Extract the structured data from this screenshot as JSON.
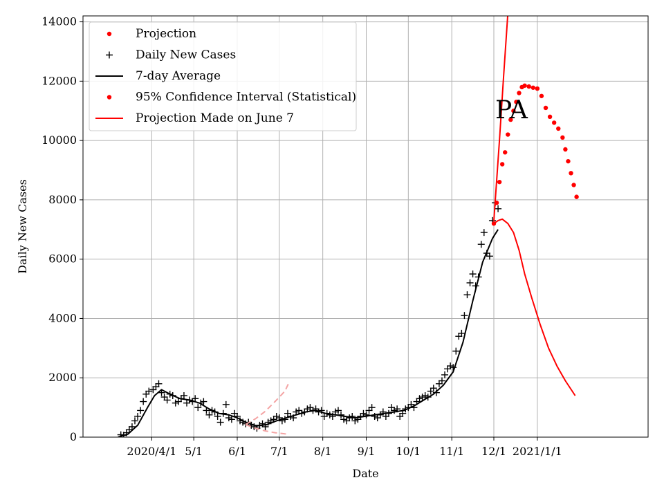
{
  "chart_data": {
    "type": "line",
    "title": "",
    "annotation": "PA",
    "xlabel": "Date",
    "ylabel": "Daily New Cases",
    "xaxis": {
      "type": "date",
      "range": [
        "2020-02-12",
        "2021-03-21"
      ],
      "ticks": [
        {
          "date": "2020-04-01",
          "label": "2020/4/1"
        },
        {
          "date": "2020-05-01",
          "label": "5/1"
        },
        {
          "date": "2020-06-01",
          "label": "6/1"
        },
        {
          "date": "2020-07-01",
          "label": "7/1"
        },
        {
          "date": "2020-08-01",
          "label": "8/1"
        },
        {
          "date": "2020-09-01",
          "label": "9/1"
        },
        {
          "date": "2020-10-01",
          "label": "10/1"
        },
        {
          "date": "2020-11-01",
          "label": "11/1"
        },
        {
          "date": "2020-12-01",
          "label": "12/1"
        },
        {
          "date": "2021-01-01",
          "label": "2021/1/1"
        }
      ]
    },
    "ylim": [
      0,
      14200
    ],
    "yticks": [
      0,
      2000,
      4000,
      6000,
      8000,
      10000,
      12000,
      14000
    ],
    "grid": true,
    "legend_position": "top-left",
    "legend": [
      {
        "label": "Projection",
        "marker": "dot",
        "color": "#ff0000"
      },
      {
        "label": "Daily New Cases",
        "marker": "plus",
        "color": "#000000"
      },
      {
        "label": "7-day Average",
        "marker": "line",
        "color": "#000000"
      },
      {
        "label": "95% Confidence Interval (Statistical)",
        "marker": "dot",
        "color": "#ff0000"
      },
      {
        "label": "Projection Made on June 7",
        "marker": "line",
        "color": "#ff0000"
      }
    ],
    "series": [
      {
        "name": "Daily New Cases",
        "style": "plus",
        "color": "#000000",
        "points": [
          [
            "2020-03-10",
            80
          ],
          [
            "2020-03-12",
            60
          ],
          [
            "2020-03-14",
            150
          ],
          [
            "2020-03-16",
            250
          ],
          [
            "2020-03-18",
            350
          ],
          [
            "2020-03-20",
            550
          ],
          [
            "2020-03-22",
            700
          ],
          [
            "2020-03-24",
            900
          ],
          [
            "2020-03-26",
            1200
          ],
          [
            "2020-03-28",
            1450
          ],
          [
            "2020-03-30",
            1550
          ],
          [
            "2020-04-02",
            1600
          ],
          [
            "2020-04-04",
            1700
          ],
          [
            "2020-04-06",
            1800
          ],
          [
            "2020-04-08",
            1500
          ],
          [
            "2020-04-10",
            1350
          ],
          [
            "2020-04-12",
            1250
          ],
          [
            "2020-04-14",
            1450
          ],
          [
            "2020-04-16",
            1400
          ],
          [
            "2020-04-18",
            1150
          ],
          [
            "2020-04-20",
            1200
          ],
          [
            "2020-04-22",
            1300
          ],
          [
            "2020-04-24",
            1400
          ],
          [
            "2020-04-26",
            1150
          ],
          [
            "2020-04-28",
            1250
          ],
          [
            "2020-04-30",
            1200
          ],
          [
            "2020-05-02",
            1300
          ],
          [
            "2020-05-04",
            1000
          ],
          [
            "2020-05-06",
            1150
          ],
          [
            "2020-05-08",
            1200
          ],
          [
            "2020-05-10",
            900
          ],
          [
            "2020-05-12",
            750
          ],
          [
            "2020-05-14",
            900
          ],
          [
            "2020-05-16",
            850
          ],
          [
            "2020-05-18",
            700
          ],
          [
            "2020-05-20",
            500
          ],
          [
            "2020-05-22",
            800
          ],
          [
            "2020-05-24",
            1100
          ],
          [
            "2020-05-26",
            650
          ],
          [
            "2020-05-28",
            600
          ],
          [
            "2020-05-30",
            800
          ],
          [
            "2020-06-01",
            700
          ],
          [
            "2020-06-03",
            550
          ],
          [
            "2020-06-05",
            500
          ],
          [
            "2020-06-07",
            450
          ],
          [
            "2020-06-09",
            500
          ],
          [
            "2020-06-11",
            400
          ],
          [
            "2020-06-13",
            350
          ],
          [
            "2020-06-15",
            300
          ],
          [
            "2020-06-17",
            400
          ],
          [
            "2020-06-19",
            450
          ],
          [
            "2020-06-21",
            350
          ],
          [
            "2020-06-23",
            500
          ],
          [
            "2020-06-25",
            550
          ],
          [
            "2020-06-27",
            600
          ],
          [
            "2020-06-29",
            700
          ],
          [
            "2020-07-01",
            650
          ],
          [
            "2020-07-03",
            550
          ],
          [
            "2020-07-05",
            600
          ],
          [
            "2020-07-07",
            800
          ],
          [
            "2020-07-09",
            700
          ],
          [
            "2020-07-11",
            650
          ],
          [
            "2020-07-13",
            850
          ],
          [
            "2020-07-15",
            900
          ],
          [
            "2020-07-17",
            800
          ],
          [
            "2020-07-19",
            850
          ],
          [
            "2020-07-21",
            950
          ],
          [
            "2020-07-23",
            1000
          ],
          [
            "2020-07-25",
            900
          ],
          [
            "2020-07-27",
            950
          ],
          [
            "2020-07-29",
            850
          ],
          [
            "2020-07-31",
            900
          ],
          [
            "2020-08-02",
            700
          ],
          [
            "2020-08-04",
            800
          ],
          [
            "2020-08-06",
            750
          ],
          [
            "2020-08-08",
            700
          ],
          [
            "2020-08-10",
            850
          ],
          [
            "2020-08-12",
            900
          ],
          [
            "2020-08-14",
            750
          ],
          [
            "2020-08-16",
            600
          ],
          [
            "2020-08-18",
            550
          ],
          [
            "2020-08-20",
            650
          ],
          [
            "2020-08-22",
            700
          ],
          [
            "2020-08-24",
            550
          ],
          [
            "2020-08-26",
            600
          ],
          [
            "2020-08-28",
            700
          ],
          [
            "2020-08-30",
            800
          ],
          [
            "2020-09-01",
            750
          ],
          [
            "2020-09-03",
            900
          ],
          [
            "2020-09-05",
            1000
          ],
          [
            "2020-09-07",
            700
          ],
          [
            "2020-09-09",
            650
          ],
          [
            "2020-09-11",
            750
          ],
          [
            "2020-09-13",
            850
          ],
          [
            "2020-09-15",
            700
          ],
          [
            "2020-09-17",
            800
          ],
          [
            "2020-09-19",
            1000
          ],
          [
            "2020-09-21",
            900
          ],
          [
            "2020-09-23",
            950
          ],
          [
            "2020-09-25",
            700
          ],
          [
            "2020-09-27",
            800
          ],
          [
            "2020-09-29",
            950
          ],
          [
            "2020-10-01",
            1000
          ],
          [
            "2020-10-03",
            1100
          ],
          [
            "2020-10-05",
            1000
          ],
          [
            "2020-10-07",
            1200
          ],
          [
            "2020-10-09",
            1300
          ],
          [
            "2020-10-11",
            1350
          ],
          [
            "2020-10-13",
            1400
          ],
          [
            "2020-10-15",
            1350
          ],
          [
            "2020-10-17",
            1550
          ],
          [
            "2020-10-19",
            1650
          ],
          [
            "2020-10-21",
            1500
          ],
          [
            "2020-10-23",
            1800
          ],
          [
            "2020-10-25",
            1900
          ],
          [
            "2020-10-27",
            2100
          ],
          [
            "2020-10-29",
            2300
          ],
          [
            "2020-10-31",
            2400
          ],
          [
            "2020-11-02",
            2350
          ],
          [
            "2020-11-04",
            2900
          ],
          [
            "2020-11-06",
            3400
          ],
          [
            "2020-11-08",
            3500
          ],
          [
            "2020-11-10",
            4100
          ],
          [
            "2020-11-12",
            4800
          ],
          [
            "2020-11-14",
            5200
          ],
          [
            "2020-11-16",
            5500
          ],
          [
            "2020-11-18",
            5100
          ],
          [
            "2020-11-20",
            5400
          ],
          [
            "2020-11-22",
            6500
          ],
          [
            "2020-11-24",
            6900
          ],
          [
            "2020-11-26",
            6200
          ],
          [
            "2020-11-28",
            6100
          ],
          [
            "2020-11-30",
            7300
          ],
          [
            "2020-12-02",
            7900
          ],
          [
            "2020-12-04",
            7700
          ]
        ]
      },
      {
        "name": "7-day Average",
        "style": "line",
        "color": "#000000",
        "points": [
          [
            "2020-03-08",
            0
          ],
          [
            "2020-03-15",
            100
          ],
          [
            "2020-03-22",
            400
          ],
          [
            "2020-03-29",
            1000
          ],
          [
            "2020-04-03",
            1400
          ],
          [
            "2020-04-08",
            1600
          ],
          [
            "2020-04-14",
            1450
          ],
          [
            "2020-04-21",
            1300
          ],
          [
            "2020-04-28",
            1250
          ],
          [
            "2020-05-05",
            1150
          ],
          [
            "2020-05-12",
            950
          ],
          [
            "2020-05-19",
            800
          ],
          [
            "2020-05-26",
            750
          ],
          [
            "2020-06-01",
            650
          ],
          [
            "2020-06-08",
            480
          ],
          [
            "2020-06-15",
            380
          ],
          [
            "2020-06-22",
            420
          ],
          [
            "2020-06-29",
            550
          ],
          [
            "2020-07-06",
            650
          ],
          [
            "2020-07-13",
            750
          ],
          [
            "2020-07-20",
            850
          ],
          [
            "2020-07-27",
            900
          ],
          [
            "2020-08-03",
            800
          ],
          [
            "2020-08-10",
            750
          ],
          [
            "2020-08-17",
            700
          ],
          [
            "2020-08-24",
            650
          ],
          [
            "2020-08-31",
            700
          ],
          [
            "2020-09-07",
            750
          ],
          [
            "2020-09-14",
            800
          ],
          [
            "2020-09-21",
            850
          ],
          [
            "2020-09-28",
            900
          ],
          [
            "2020-10-05",
            1050
          ],
          [
            "2020-10-12",
            1250
          ],
          [
            "2020-10-19",
            1450
          ],
          [
            "2020-10-26",
            1750
          ],
          [
            "2020-11-02",
            2200
          ],
          [
            "2020-11-09",
            3200
          ],
          [
            "2020-11-16",
            4600
          ],
          [
            "2020-11-23",
            5900
          ],
          [
            "2020-11-30",
            6700
          ],
          [
            "2020-12-04",
            7000
          ]
        ]
      },
      {
        "name": "Projection",
        "style": "dot",
        "color": "#ff0000",
        "points": [
          [
            "2020-12-01",
            7200
          ],
          [
            "2020-12-03",
            7900
          ],
          [
            "2020-12-05",
            8600
          ],
          [
            "2020-12-07",
            9200
          ],
          [
            "2020-12-09",
            9600
          ],
          [
            "2020-12-11",
            10200
          ],
          [
            "2020-12-13",
            10700
          ],
          [
            "2020-12-15",
            11000
          ],
          [
            "2020-12-17",
            11300
          ],
          [
            "2020-12-19",
            11600
          ],
          [
            "2020-12-21",
            11800
          ],
          [
            "2020-12-23",
            11850
          ],
          [
            "2020-12-26",
            11820
          ],
          [
            "2020-12-29",
            11780
          ],
          [
            "2021-01-01",
            11750
          ],
          [
            "2021-01-04",
            11500
          ],
          [
            "2021-01-07",
            11100
          ],
          [
            "2021-01-10",
            10800
          ],
          [
            "2021-01-13",
            10600
          ],
          [
            "2021-01-16",
            10400
          ],
          [
            "2021-01-19",
            10100
          ],
          [
            "2021-01-21",
            9700
          ],
          [
            "2021-01-23",
            9300
          ],
          [
            "2021-01-25",
            8900
          ],
          [
            "2021-01-27",
            8500
          ],
          [
            "2021-01-29",
            8100
          ]
        ]
      },
      {
        "name": "95% Confidence Interval (Statistical)",
        "style": "line",
        "color": "#ff0000",
        "points": [
          [
            "2020-12-01",
            7200
          ],
          [
            "2020-12-04",
            7300
          ],
          [
            "2020-12-07",
            7350
          ],
          [
            "2020-12-11",
            7200
          ],
          [
            "2020-12-15",
            6900
          ],
          [
            "2020-12-19",
            6300
          ],
          [
            "2020-12-23",
            5500
          ],
          [
            "2020-12-28",
            4700
          ],
          [
            "2021-01-03",
            3800
          ],
          [
            "2021-01-09",
            3000
          ],
          [
            "2021-01-15",
            2400
          ],
          [
            "2021-01-21",
            1900
          ],
          [
            "2021-01-28",
            1400
          ]
        ]
      },
      {
        "name": "Upper 95% bound",
        "style": "line",
        "color": "#ff0000",
        "points": [
          [
            "2020-12-01",
            7300
          ],
          [
            "2020-12-05",
            10000
          ],
          [
            "2020-12-08",
            12200
          ],
          [
            "2020-12-11",
            14300
          ]
        ]
      },
      {
        "name": "Projection Made on June 7",
        "style": "dashed",
        "color": "#f4a4a4",
        "points": [
          [
            "2020-06-07",
            430
          ],
          [
            "2020-06-14",
            620
          ],
          [
            "2020-06-21",
            870
          ],
          [
            "2020-06-28",
            1200
          ],
          [
            "2020-07-05",
            1550
          ],
          [
            "2020-07-08",
            1850
          ]
        ]
      },
      {
        "name": "Projection Made on June 7 (lower)",
        "style": "dashed",
        "color": "#f4a4a4",
        "points": [
          [
            "2020-06-07",
            420
          ],
          [
            "2020-06-14",
            300
          ],
          [
            "2020-06-21",
            210
          ],
          [
            "2020-06-28",
            150
          ],
          [
            "2020-07-05",
            110
          ],
          [
            "2020-07-08",
            100
          ]
        ]
      }
    ]
  }
}
